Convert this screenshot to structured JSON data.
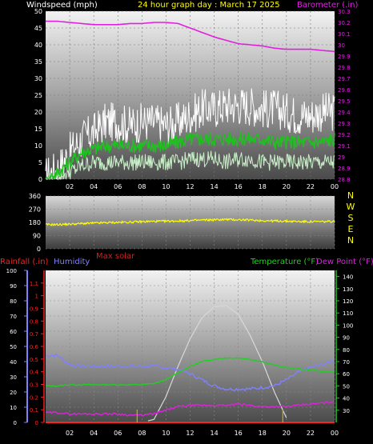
{
  "header": {
    "left_label": "Windspeed (mph)",
    "center_label": "24 hour graph day : March 17 2025",
    "right_label": "Barometer (.in)"
  },
  "colors": {
    "background": "#000000",
    "axis_text": "#ffffff",
    "title_yellow": "#ffff00",
    "barometer": "#e020e0",
    "wind_gust": "#ffffff",
    "wind_avg": "#20c020",
    "wind_min": "#c8f0c8",
    "direction": "#ffff00",
    "temperature": "#20d020",
    "dewpoint": "#e020e0",
    "humidity": "#8080ff",
    "rainfall": "#ff2020",
    "solar": "#d8d8d8",
    "max_solar_label": "#d02020"
  },
  "hour_ticks": [
    "02",
    "04",
    "06",
    "08",
    "10",
    "12",
    "14",
    "16",
    "18",
    "20",
    "22",
    "00"
  ],
  "chart_data": [
    {
      "type": "line",
      "title": "24 hour graph day : March 17 2025",
      "ylabel": "Windspeed (mph)",
      "ylabel_right": "Barometer (.in)",
      "ylim": [
        0,
        50
      ],
      "ylim_right": [
        28.8,
        30.3
      ],
      "yticks": [
        "0",
        "5",
        "10",
        "15",
        "20",
        "25",
        "30",
        "35",
        "40",
        "45",
        "50"
      ],
      "yticks_right": [
        "28.8",
        "28.9",
        "29",
        "29.1",
        "29.2",
        "29.3",
        "29.4",
        "29.5",
        "29.6",
        "29.7",
        "29.8",
        "29.9",
        "30",
        "30.1",
        "30.2",
        "30.3"
      ],
      "x": [
        0,
        1,
        2,
        3,
        4,
        5,
        6,
        7,
        8,
        9,
        10,
        11,
        12,
        13,
        14,
        15,
        16,
        17,
        18,
        19,
        20,
        21,
        22,
        23,
        24
      ],
      "series": [
        {
          "name": "Gust",
          "axis": "left",
          "values": [
            1,
            3,
            8,
            12,
            14,
            17,
            17,
            16,
            17,
            17,
            16,
            17,
            19,
            21,
            21,
            22,
            22,
            22,
            21,
            21,
            20,
            19,
            19,
            20,
            20
          ]
        },
        {
          "name": "Average",
          "axis": "left",
          "values": [
            0,
            2,
            5,
            8,
            9,
            10,
            10,
            10,
            10,
            10,
            10,
            11,
            12,
            12,
            12,
            12,
            12,
            12,
            12,
            11,
            11,
            11,
            11,
            11,
            12
          ]
        },
        {
          "name": "Min",
          "axis": "left",
          "values": [
            0,
            1,
            2,
            4,
            5,
            5,
            5,
            5,
            5,
            5,
            5,
            5,
            6,
            6,
            6,
            5,
            6,
            6,
            5,
            5,
            5,
            5,
            5,
            5,
            5
          ]
        },
        {
          "name": "Barometer",
          "axis": "right",
          "values": [
            30.21,
            30.21,
            30.2,
            30.19,
            30.18,
            30.18,
            30.18,
            30.19,
            30.19,
            30.2,
            30.2,
            30.19,
            30.15,
            30.11,
            30.07,
            30.04,
            30.01,
            30.0,
            29.99,
            29.97,
            29.96,
            29.96,
            29.96,
            29.95,
            29.94
          ]
        }
      ]
    },
    {
      "type": "line",
      "yticks": [
        "0",
        "90",
        "180",
        "270",
        "360"
      ],
      "ylim": [
        0,
        360
      ],
      "compass": [
        "N",
        "W",
        "S",
        "E",
        "N"
      ],
      "x": [
        0,
        1,
        2,
        3,
        4,
        5,
        6,
        7,
        8,
        9,
        10,
        11,
        12,
        13,
        14,
        15,
        16,
        17,
        18,
        19,
        20,
        21,
        22,
        23,
        24
      ],
      "series": [
        {
          "name": "Direction",
          "values": [
            165,
            165,
            168,
            172,
            175,
            178,
            180,
            182,
            185,
            187,
            188,
            190,
            192,
            196,
            198,
            200,
            198,
            196,
            192,
            190,
            188,
            186,
            185,
            185,
            186
          ]
        }
      ]
    },
    {
      "type": "line",
      "legend": [
        "Rainfall (.in)",
        "Humidity",
        "Max solar",
        "Temperature (°F)",
        "Dew Point (°F)"
      ],
      "ylim_humidity": [
        0,
        100
      ],
      "yticks_humidity": [
        "0",
        "10",
        "20",
        "30",
        "40",
        "50",
        "60",
        "70",
        "80",
        "90",
        "100"
      ],
      "ylim_rain": [
        0,
        1.2
      ],
      "yticks_rain": [
        "0",
        "0.1",
        "0.2",
        "0.3",
        "0.4",
        "0.5",
        "0.6",
        "0.7",
        "0.8",
        "0.9",
        "1",
        "1.1"
      ],
      "ylim_temp": [
        20,
        145
      ],
      "yticks_temp": [
        "30",
        "40",
        "50",
        "60",
        "70",
        "80",
        "90",
        "100",
        "110",
        "120",
        "130",
        "140"
      ],
      "x": [
        0,
        1,
        2,
        3,
        4,
        5,
        6,
        7,
        8,
        9,
        10,
        11,
        12,
        13,
        14,
        15,
        16,
        17,
        18,
        19,
        20,
        21,
        22,
        23,
        24
      ],
      "series": [
        {
          "name": "Humidity",
          "axis": "humidity",
          "values": [
            44,
            44,
            38,
            37,
            37,
            37,
            37,
            37,
            37,
            37,
            36,
            35,
            32,
            28,
            24,
            22,
            22,
            22,
            23,
            24,
            28,
            33,
            36,
            38,
            41
          ]
        },
        {
          "name": "Temperature (°F)",
          "axis": "temp",
          "values": [
            50,
            50,
            51,
            51,
            51,
            51,
            51,
            51,
            51,
            52,
            55,
            61,
            66,
            70,
            72,
            73,
            73,
            72,
            70,
            67,
            65,
            64,
            63,
            62,
            62
          ]
        },
        {
          "name": "Dew Point (°F)",
          "axis": "temp",
          "values": [
            28,
            28,
            27,
            27,
            27,
            27,
            27,
            26,
            26,
            27,
            30,
            33,
            34,
            34,
            34,
            34,
            35,
            34,
            33,
            33,
            33,
            34,
            35,
            36,
            37
          ]
        },
        {
          "name": "Max solar",
          "axis": "humidity",
          "values": [
            0,
            0,
            0,
            0,
            0,
            0,
            0,
            0,
            0,
            2,
            17,
            37,
            55,
            69,
            76,
            77,
            71,
            57,
            40,
            20,
            3,
            0,
            0,
            0,
            0
          ]
        },
        {
          "name": "Rainfall (.in)",
          "axis": "rain",
          "values": [
            0,
            0,
            0,
            0,
            0,
            0,
            0,
            0,
            0,
            0,
            0,
            0,
            0,
            0,
            0,
            0,
            0,
            0,
            0,
            0,
            0,
            0,
            0,
            0,
            0
          ]
        }
      ]
    }
  ]
}
